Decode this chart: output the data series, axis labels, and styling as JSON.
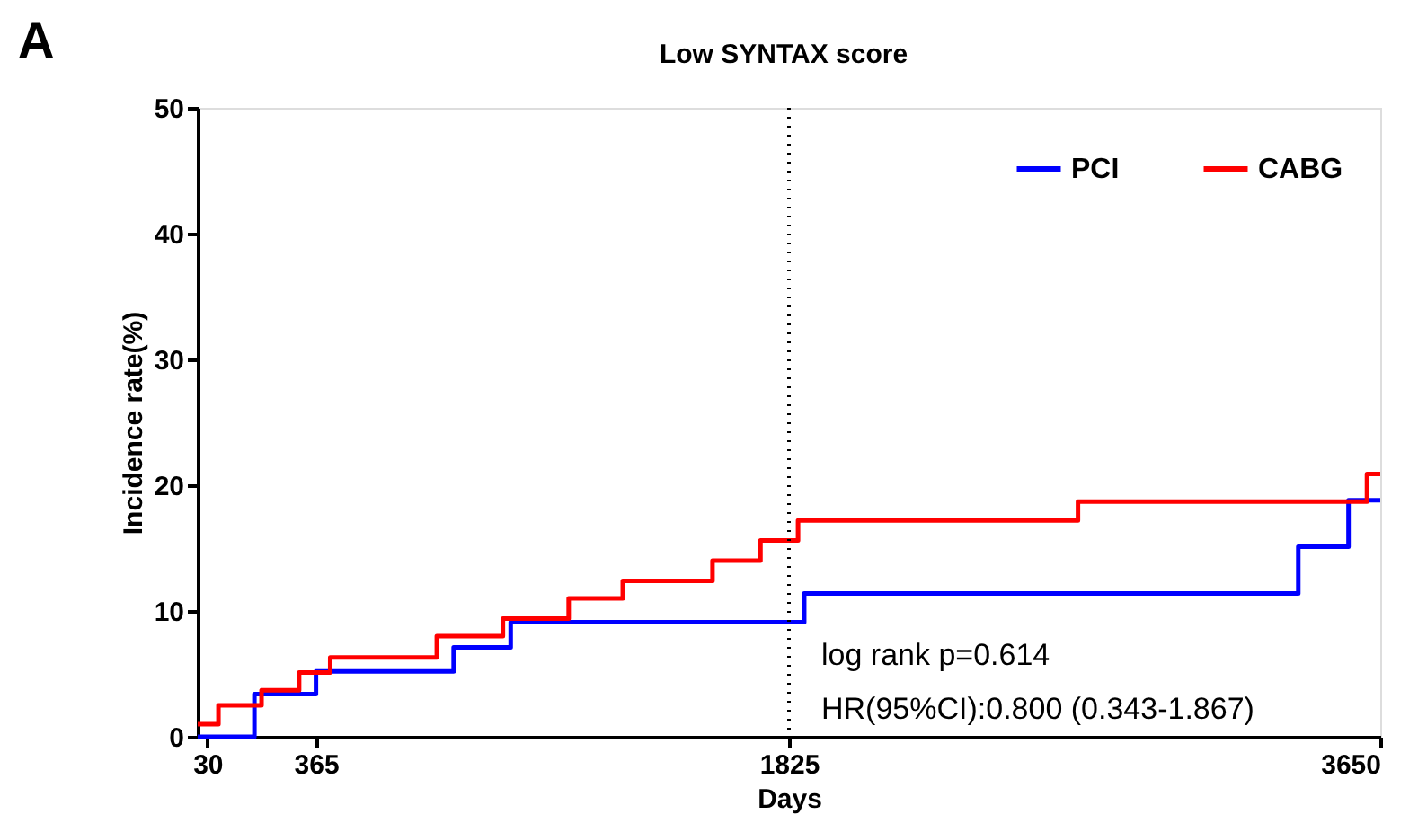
{
  "chart_data": {
    "type": "step",
    "title": "Low SYNTAX score",
    "xlabel": "Days",
    "ylabel": "Incidence rate(%)",
    "xlim": [
      0,
      3650
    ],
    "xticks": [
      30,
      365,
      1825,
      3650
    ],
    "ylim": [
      0,
      50
    ],
    "yticks": [
      0,
      10,
      20,
      30,
      40,
      50
    ],
    "grid": false,
    "legend": "top right",
    "marker": "none",
    "line_style": "solid",
    "series": [
      {
        "name": "PCI",
        "color": "#0000ff",
        "x": [
          0,
          175,
          365,
          790,
          966,
          1872,
          3397,
          3552,
          3650
        ],
        "values": [
          0,
          3.4,
          5.2,
          7.1,
          9.1,
          11.4,
          15.1,
          18.8,
          18.8
        ]
      },
      {
        "name": "CABG",
        "color": "#ff0000",
        "x": [
          0,
          64,
          197,
          313,
          409,
          738,
          942,
          1145,
          1312,
          1589,
          1737,
          1853,
          2717,
          3609,
          3650
        ],
        "values": [
          1.0,
          2.5,
          3.7,
          5.1,
          6.3,
          8.0,
          9.4,
          11.0,
          12.4,
          14.0,
          15.6,
          17.2,
          18.7,
          20.9,
          20.9
        ]
      }
    ],
    "ref_lines": [
      {
        "axis": "x",
        "value": 1825,
        "color": "#000000",
        "line_style": "dotted"
      }
    ],
    "annotations": [
      "A",
      "log rank p=0.614",
      "HR(95%CI):0.800 (0.343-1.867)"
    ]
  }
}
